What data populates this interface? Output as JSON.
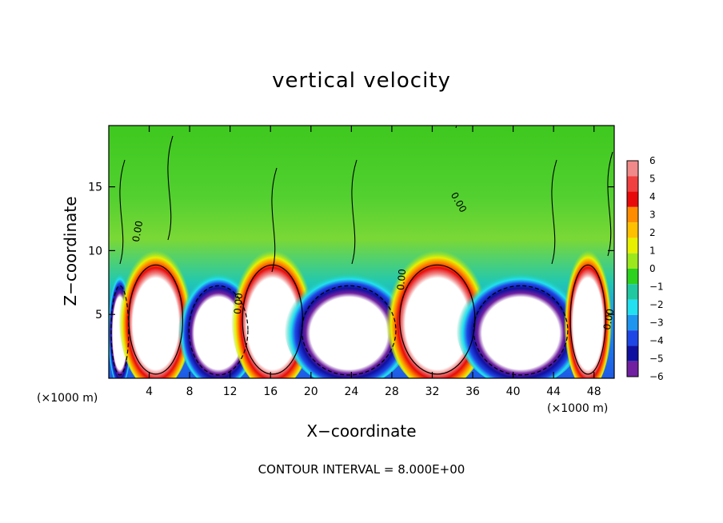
{
  "chart_data": {
    "type": "heatmap",
    "title": "vertical velocity",
    "xlabel": "X−coordinate",
    "ylabel": "Z−coordinate",
    "x_scale_note": "(×1000 m)",
    "footer": "CONTOUR INTERVAL = 8.000E+00",
    "xlim": [
      0,
      50
    ],
    "ylim": [
      0,
      19.8
    ],
    "x_ticks": [
      "4",
      "8",
      "12",
      "16",
      "20",
      "24",
      "28",
      "32",
      "36",
      "40",
      "44",
      "48"
    ],
    "y_ticks": [
      "5",
      "10",
      "15"
    ],
    "colorbar": {
      "levels": [
        "6",
        "5",
        "4",
        "3",
        "2",
        "1",
        "0",
        "−1",
        "−2",
        "−3",
        "−4",
        "−5",
        "−6"
      ],
      "colors": [
        "#f08a8a",
        "#f04040",
        "#e80a0a",
        "#ff8c00",
        "#ffc000",
        "#e8f000",
        "#9be81c",
        "#2cd21e",
        "#22c8a0",
        "#22e0f0",
        "#1e96f0",
        "#1e46e6",
        "#1010a0",
        "#7020a0"
      ]
    },
    "zero_contour_labels": [
      "0.00",
      "0.00",
      "0.00",
      "0.00",
      "0.00"
    ],
    "cells": [
      {
        "x0": 0.4,
        "x1": 1.8,
        "value": -6
      },
      {
        "x0": 2.5,
        "x1": 6.8,
        "value": 6
      },
      {
        "x0": 8.5,
        "x1": 13.2,
        "value": -6
      },
      {
        "x0": 13.8,
        "x1": 18.6,
        "value": 6
      },
      {
        "x0": 20.0,
        "x1": 27.5,
        "value": -6
      },
      {
        "x0": 29.5,
        "x1": 35.5,
        "value": 6
      },
      {
        "x0": 37.0,
        "x1": 44.5,
        "value": -6
      },
      {
        "x0": 46.0,
        "x1": 48.8,
        "value": 6
      }
    ]
  }
}
